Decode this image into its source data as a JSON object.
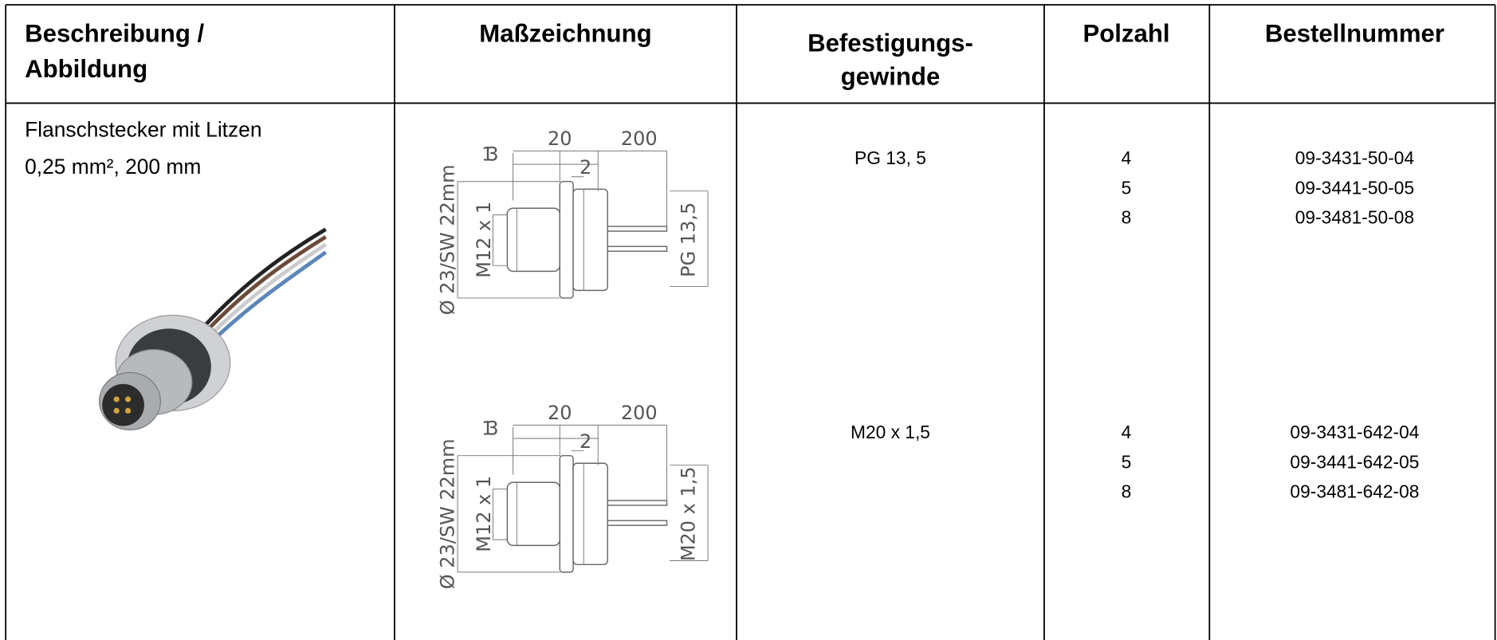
{
  "table": {
    "headers": [
      [
        "Beschreibung /",
        "Abbildung"
      ],
      [
        "Maßzeichnung"
      ],
      [
        "Befestigungs-",
        "gewinde"
      ],
      [
        "Polzahl"
      ],
      [
        "Bestellnummer"
      ]
    ],
    "row": {
      "description": [
        "Flanschstecker mit Litzen",
        "0,25 mm², 200 mm"
      ],
      "drawings": [
        {
          "d13": "13",
          "d20": "20",
          "d200": "200",
          "d2": "2",
          "diameter": "Ø 23/SW 22mm",
          "inner": "M12 x 1",
          "thread": "PG 13,5"
        },
        {
          "d13": "13",
          "d20": "20",
          "d200": "200",
          "d2": "2",
          "diameter": "Ø 23/SW 22mm",
          "inner": "M12 x 1",
          "thread": "M20 x 1,5"
        }
      ],
      "variants": [
        {
          "thread": "PG 13, 5",
          "poles": [
            4,
            5,
            8
          ],
          "order_numbers": [
            "09-3431-50-04",
            "09-3441-50-05",
            "09-3481-50-08"
          ]
        },
        {
          "thread": "M20 x 1,5",
          "poles": [
            4,
            5,
            8
          ],
          "order_numbers": [
            "09-3431-642-04",
            "09-3441-642-05",
            "09-3481-642-08"
          ]
        }
      ]
    }
  }
}
